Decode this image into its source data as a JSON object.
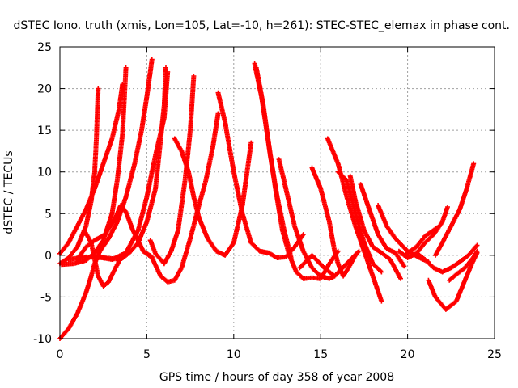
{
  "chart_data": {
    "type": "scatter",
    "title": "dSTEC Iono. truth (xmis, Lon=105, Lat=-10, h=261): STEC-STEC_elemax in phase cont.",
    "xlabel": "GPS time / hours of day 358 of year 2008",
    "ylabel": "dSTEC  / TECUs",
    "xlim": [
      0,
      25
    ],
    "ylim": [
      -10,
      25
    ],
    "xticks": [
      "0",
      "5",
      "10",
      "15",
      "20",
      "25"
    ],
    "yticks": [
      "-10",
      "-5",
      "0",
      "5",
      "10",
      "15",
      "20",
      "25"
    ],
    "grid": true,
    "marker": "+",
    "color": "#ff0000",
    "series": [
      {
        "points": [
          [
            0.0,
            -10.0
          ],
          [
            0.5,
            -8.8
          ],
          [
            1.0,
            -7.0
          ],
          [
            1.5,
            -4.5
          ],
          [
            1.8,
            -2.5
          ],
          [
            2.0,
            -1.0
          ],
          [
            2.3,
            0.5
          ],
          [
            2.8,
            2.0
          ],
          [
            3.3,
            4.0
          ],
          [
            3.8,
            7.0
          ],
          [
            4.3,
            11.0
          ],
          [
            4.7,
            15.0
          ],
          [
            5.0,
            19.0
          ],
          [
            5.3,
            23.5
          ]
        ]
      },
      {
        "points": [
          [
            0.0,
            -1.0
          ],
          [
            0.5,
            -0.3
          ],
          [
            1.0,
            1.0
          ],
          [
            1.5,
            3.5
          ],
          [
            1.8,
            6.5
          ],
          [
            2.0,
            10.0
          ],
          [
            2.1,
            14.0
          ],
          [
            2.2,
            20.0
          ]
        ]
      },
      {
        "points": [
          [
            0.1,
            -1.1
          ],
          [
            0.8,
            -1.0
          ],
          [
            1.5,
            -0.6
          ],
          [
            2.0,
            0.3
          ],
          [
            2.5,
            1.8
          ],
          [
            3.0,
            5.0
          ],
          [
            3.3,
            9.0
          ],
          [
            3.6,
            14.5
          ],
          [
            3.8,
            22.5
          ]
        ]
      },
      {
        "points": [
          [
            0.0,
            0.2
          ],
          [
            0.5,
            1.5
          ],
          [
            1.0,
            3.5
          ],
          [
            1.5,
            5.5
          ],
          [
            2.0,
            8.0
          ],
          [
            2.5,
            11.0
          ],
          [
            3.0,
            14.0
          ],
          [
            3.4,
            17.5
          ],
          [
            3.6,
            20.5
          ]
        ]
      },
      {
        "points": [
          [
            1.4,
            3.0
          ],
          [
            1.8,
            1.5
          ],
          [
            2.2,
            -2.5
          ],
          [
            2.5,
            -3.7
          ],
          [
            2.8,
            -3.2
          ],
          [
            3.2,
            -1.5
          ],
          [
            3.6,
            0.0
          ]
        ]
      },
      {
        "points": [
          [
            1.0,
            -0.5
          ],
          [
            1.5,
            1.0
          ],
          [
            2.0,
            1.8
          ],
          [
            2.6,
            2.5
          ],
          [
            3.2,
            4.5
          ],
          [
            3.5,
            6.0
          ],
          [
            3.8,
            5.2
          ],
          [
            4.2,
            3.0
          ],
          [
            4.8,
            0.5
          ],
          [
            5.3,
            -0.2
          ]
        ]
      },
      {
        "points": [
          [
            0.5,
            -0.5
          ],
          [
            1.5,
            -0.2
          ],
          [
            2.5,
            -0.3
          ],
          [
            3.5,
            -0.5
          ],
          [
            4.0,
            0.3
          ],
          [
            4.5,
            1.5
          ],
          [
            5.0,
            4.0
          ],
          [
            5.5,
            8.0
          ],
          [
            5.8,
            14.0
          ],
          [
            6.0,
            18.0
          ],
          [
            6.1,
            22.5
          ]
        ]
      },
      {
        "points": [
          [
            2.2,
            -0.2
          ],
          [
            3.0,
            -0.5
          ],
          [
            3.8,
            0.3
          ],
          [
            4.5,
            3.0
          ],
          [
            5.0,
            7.0
          ],
          [
            5.5,
            12.0
          ],
          [
            6.0,
            16.5
          ],
          [
            6.2,
            22.0
          ]
        ]
      },
      {
        "points": [
          [
            4.8,
            0.5
          ],
          [
            5.3,
            -0.3
          ],
          [
            5.8,
            -2.5
          ],
          [
            6.2,
            -3.2
          ],
          [
            6.6,
            -3.0
          ],
          [
            7.0,
            -1.5
          ],
          [
            7.5,
            2.0
          ],
          [
            8.0,
            6.0
          ],
          [
            8.4,
            9.0
          ],
          [
            8.8,
            13.0
          ],
          [
            9.1,
            17.0
          ]
        ]
      },
      {
        "points": [
          [
            5.2,
            1.8
          ],
          [
            5.5,
            0.2
          ],
          [
            6.0,
            -1.0
          ],
          [
            6.4,
            0.5
          ],
          [
            6.8,
            3.0
          ],
          [
            7.2,
            9.0
          ],
          [
            7.5,
            15.0
          ],
          [
            7.7,
            21.5
          ]
        ]
      },
      {
        "points": [
          [
            6.6,
            14.0
          ],
          [
            7.0,
            12.5
          ],
          [
            7.4,
            10.0
          ],
          [
            7.7,
            7.0
          ],
          [
            8.0,
            4.5
          ],
          [
            8.5,
            2.0
          ],
          [
            9.0,
            0.5
          ],
          [
            9.5,
            0.0
          ],
          [
            10.0,
            1.5
          ],
          [
            10.5,
            6.0
          ],
          [
            11.0,
            13.5
          ]
        ]
      },
      {
        "points": [
          [
            9.1,
            19.5
          ],
          [
            9.5,
            16.0
          ],
          [
            10.0,
            10.0
          ],
          [
            10.5,
            5.0
          ],
          [
            11.0,
            1.5
          ],
          [
            11.5,
            0.5
          ],
          [
            12.0,
            0.3
          ],
          [
            12.5,
            -0.3
          ],
          [
            13.0,
            -0.2
          ],
          [
            13.5,
            1.0
          ],
          [
            14.0,
            2.5
          ]
        ]
      },
      {
        "points": [
          [
            11.2,
            23.0
          ],
          [
            11.6,
            19.0
          ],
          [
            12.0,
            13.5
          ],
          [
            12.4,
            8.0
          ],
          [
            12.8,
            3.0
          ],
          [
            13.2,
            0.0
          ],
          [
            13.6,
            -2.0
          ],
          [
            14.0,
            -2.8
          ],
          [
            14.5,
            -2.7
          ],
          [
            15.0,
            -2.8
          ],
          [
            15.5,
            -1.0
          ],
          [
            16.0,
            0.5
          ]
        ]
      },
      {
        "points": [
          [
            11.3,
            22.5
          ],
          [
            11.7,
            18.0
          ],
          [
            12.1,
            12.0
          ],
          [
            12.5,
            7.0
          ],
          [
            12.9,
            3.0
          ],
          [
            13.3,
            -0.3
          ]
        ]
      },
      {
        "points": [
          [
            12.6,
            11.5
          ],
          [
            13.0,
            8.0
          ],
          [
            13.5,
            3.5
          ],
          [
            14.0,
            0.5
          ],
          [
            14.5,
            -1.5
          ],
          [
            15.0,
            -2.5
          ],
          [
            15.5,
            -2.8
          ],
          [
            15.8,
            -2.5
          ]
        ]
      },
      {
        "points": [
          [
            14.5,
            10.5
          ],
          [
            15.0,
            8.0
          ],
          [
            15.5,
            4.0
          ],
          [
            15.8,
            0.5
          ],
          [
            16.0,
            -1.0
          ],
          [
            16.3,
            -2.5
          ],
          [
            16.6,
            -1.5
          ],
          [
            17.0,
            0.0
          ]
        ]
      },
      {
        "points": [
          [
            13.8,
            -1.5
          ],
          [
            14.5,
            0.0
          ],
          [
            15.2,
            -1.5
          ],
          [
            15.8,
            -2.5
          ],
          [
            16.5,
            -1.0
          ],
          [
            17.2,
            0.5
          ]
        ]
      },
      {
        "points": [
          [
            15.4,
            14.0
          ],
          [
            16.0,
            11.0
          ],
          [
            16.5,
            7.0
          ],
          [
            17.0,
            3.5
          ],
          [
            17.5,
            0.5
          ],
          [
            18.0,
            -2.5
          ],
          [
            18.5,
            -5.5
          ]
        ]
      },
      {
        "points": [
          [
            16.0,
            10.0
          ],
          [
            16.5,
            9.0
          ],
          [
            17.0,
            5.0
          ],
          [
            17.5,
            1.5
          ],
          [
            18.0,
            -1.0
          ],
          [
            18.5,
            -2.0
          ]
        ]
      },
      {
        "points": [
          [
            16.7,
            9.5
          ],
          [
            17.0,
            6.5
          ],
          [
            17.5,
            3.0
          ],
          [
            18.0,
            1.0
          ],
          [
            18.5,
            0.3
          ],
          [
            19.0,
            -0.5
          ],
          [
            19.6,
            -2.8
          ]
        ]
      },
      {
        "points": [
          [
            17.3,
            8.5
          ],
          [
            17.8,
            5.5
          ],
          [
            18.3,
            2.5
          ],
          [
            18.8,
            0.8
          ],
          [
            19.3,
            0.3
          ],
          [
            19.8,
            -1.3
          ]
        ]
      },
      {
        "points": [
          [
            18.3,
            6.0
          ],
          [
            18.8,
            3.5
          ],
          [
            19.3,
            2.0
          ],
          [
            20.0,
            0.5
          ],
          [
            20.6,
            -0.2
          ],
          [
            21.2,
            -0.8
          ]
        ]
      },
      {
        "points": [
          [
            19.5,
            0.5
          ],
          [
            20.0,
            -0.3
          ],
          [
            20.5,
            0.2
          ],
          [
            21.0,
            1.5
          ],
          [
            21.5,
            2.5
          ],
          [
            22.0,
            4.0
          ],
          [
            22.3,
            5.8
          ]
        ]
      },
      {
        "points": [
          [
            19.8,
            0.0
          ],
          [
            20.5,
            1.0
          ],
          [
            21.0,
            2.3
          ],
          [
            21.7,
            3.3
          ]
        ]
      },
      {
        "points": [
          [
            20.5,
            0.3
          ],
          [
            21.0,
            -0.5
          ],
          [
            21.5,
            -1.5
          ],
          [
            22.0,
            -2.0
          ],
          [
            22.5,
            -1.5
          ],
          [
            23.0,
            -0.8
          ],
          [
            23.5,
            0.0
          ],
          [
            24.0,
            1.2
          ]
        ]
      },
      {
        "points": [
          [
            21.6,
            0.0
          ],
          [
            22.0,
            1.5
          ],
          [
            22.5,
            3.5
          ],
          [
            23.0,
            5.5
          ],
          [
            23.4,
            8.0
          ],
          [
            23.8,
            11.0
          ]
        ]
      },
      {
        "points": [
          [
            21.2,
            -3.0
          ],
          [
            21.6,
            -5.0
          ],
          [
            22.2,
            -6.5
          ],
          [
            22.8,
            -5.5
          ],
          [
            23.3,
            -3.0
          ],
          [
            23.7,
            -1.0
          ],
          [
            24.0,
            0.3
          ]
        ]
      },
      {
        "points": [
          [
            22.4,
            -3.0
          ],
          [
            22.8,
            -2.3
          ],
          [
            23.3,
            -1.5
          ],
          [
            23.8,
            -0.2
          ],
          [
            24.0,
            0.5
          ]
        ]
      }
    ]
  }
}
